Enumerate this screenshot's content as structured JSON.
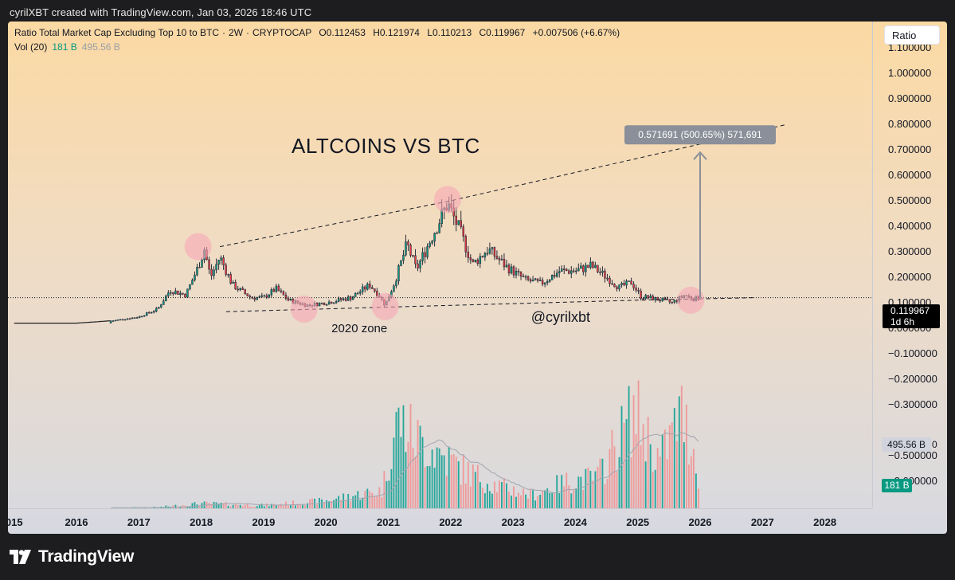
{
  "header": {
    "created_by": "cyrilXBT created with TradingView.com, Jan 03, 2026 18:46 UTC"
  },
  "legend": {
    "title": "Ratio Total Market Cap Excluding Top 10 to BTC",
    "interval": "2W",
    "exchange": "CRYPTOCAP",
    "open": "O0.112453",
    "high": "H0.121974",
    "low": "L0.110213",
    "close": "C0.119967",
    "change": "+0.007506 (+6.67%)",
    "vol_label": "Vol (20)",
    "vol_value": "181 B",
    "vol_ma_value": "495.56 B"
  },
  "toolbar": {
    "scale_button": "Ratio"
  },
  "price_tag": {
    "price": "0.119967",
    "countdown": "1d 6h"
  },
  "volume_tags": {
    "vol_ma": "495.56 B",
    "vol_ma_suffix": "0",
    "vol": "181 B"
  },
  "brand": {
    "name": "TradingView"
  },
  "colors": {
    "bg_top": "#fbd9a3",
    "bg_bottom": "#d7d9e1",
    "up": "#089981",
    "down": "#f23645",
    "vol_up": "#26a69a",
    "vol_down": "#ef9a9a",
    "highlight_circle": "#f7a6b5",
    "measure": "#8a8f99"
  },
  "chart_data": {
    "type": "candlestick",
    "title": "ALTCOINS VS BTC",
    "y_range": [
      -0.65,
      1.15
    ],
    "y_ticks": [
      "1.100000",
      "1.000000",
      "0.900000",
      "0.800000",
      "0.700000",
      "0.600000",
      "0.500000",
      "0.400000",
      "0.300000",
      "0.200000",
      "0.100000",
      "0.000000",
      "−0.100000",
      "−0.200000",
      "−0.300000",
      "−0.500000",
      "−0.600000"
    ],
    "x_range": [
      2015.0,
      2029.0
    ],
    "x_ticks": [
      "015",
      "2016",
      "2017",
      "2018",
      "2019",
      "2020",
      "2021",
      "2022",
      "2023",
      "2024",
      "2025",
      "2026",
      "2027",
      "2028"
    ],
    "price_path": [
      [
        2015.0,
        0.02
      ],
      [
        2016.0,
        0.02
      ],
      [
        2016.6,
        0.03
      ],
      [
        2017.0,
        0.045
      ],
      [
        2017.3,
        0.075
      ],
      [
        2017.5,
        0.15
      ],
      [
        2017.75,
        0.13
      ],
      [
        2017.95,
        0.24
      ],
      [
        2018.05,
        0.31
      ],
      [
        2018.15,
        0.2
      ],
      [
        2018.3,
        0.28
      ],
      [
        2018.5,
        0.17
      ],
      [
        2018.8,
        0.12
      ],
      [
        2019.0,
        0.12
      ],
      [
        2019.2,
        0.155
      ],
      [
        2019.4,
        0.11
      ],
      [
        2019.7,
        0.09
      ],
      [
        2020.0,
        0.1
      ],
      [
        2020.4,
        0.12
      ],
      [
        2020.7,
        0.17
      ],
      [
        2020.85,
        0.13
      ],
      [
        2020.95,
        0.09
      ],
      [
        2021.1,
        0.18
      ],
      [
        2021.3,
        0.33
      ],
      [
        2021.45,
        0.23
      ],
      [
        2021.7,
        0.36
      ],
      [
        2021.95,
        0.49
      ],
      [
        2022.15,
        0.38
      ],
      [
        2022.35,
        0.25
      ],
      [
        2022.6,
        0.31
      ],
      [
        2022.9,
        0.24
      ],
      [
        2023.2,
        0.19
      ],
      [
        2023.45,
        0.175
      ],
      [
        2023.75,
        0.225
      ],
      [
        2024.0,
        0.225
      ],
      [
        2024.25,
        0.245
      ],
      [
        2024.45,
        0.21
      ],
      [
        2024.7,
        0.16
      ],
      [
        2024.9,
        0.18
      ],
      [
        2025.05,
        0.125
      ],
      [
        2025.4,
        0.11
      ],
      [
        2025.55,
        0.1
      ],
      [
        2025.75,
        0.13
      ],
      [
        2025.9,
        0.115
      ],
      [
        2026.0,
        0.12
      ]
    ],
    "volume_peaks_billion": [
      [
        2015.0,
        1
      ],
      [
        2017.3,
        18
      ],
      [
        2018.0,
        60
      ],
      [
        2019.0,
        40
      ],
      [
        2020.0,
        90
      ],
      [
        2020.9,
        200
      ],
      [
        2021.15,
        950
      ],
      [
        2021.45,
        750
      ],
      [
        2021.8,
        600
      ],
      [
        2022.2,
        420
      ],
      [
        2022.7,
        260
      ],
      [
        2023.3,
        150
      ],
      [
        2023.9,
        300
      ],
      [
        2024.35,
        330
      ],
      [
        2024.95,
        1050
      ],
      [
        2025.35,
        520
      ],
      [
        2025.7,
        1020
      ],
      [
        2025.95,
        520
      ],
      [
        2026.0,
        181
      ]
    ],
    "volume_range_billion": [
      0,
      1100
    ],
    "volume_ma_billion": "495.56",
    "last_close": 0.119967,
    "upper_trendline": [
      [
        2018.3,
        0.32
      ],
      [
        2022.0,
        0.5
      ],
      [
        2027.4,
        0.8
      ]
    ],
    "lower_trendline": [
      [
        2018.4,
        0.065
      ],
      [
        2025.0,
        0.11
      ],
      [
        2026.9,
        0.12
      ]
    ],
    "highlight_points": [
      [
        2017.95,
        0.32
      ],
      [
        2019.65,
        0.075
      ],
      [
        2020.95,
        0.085
      ],
      [
        2021.95,
        0.505
      ],
      [
        2025.85,
        0.11
      ]
    ],
    "measure": {
      "from": [
        2026.0,
        0.12
      ],
      "to": [
        2026.0,
        0.69
      ],
      "label": "0.571691 (500.65%) 571,691"
    },
    "annotations": [
      {
        "text": "2020 zone",
        "at": [
          2020.6,
          0.0
        ]
      },
      {
        "text": "@cyrilxbt",
        "at": [
          2023.8,
          0.04
        ]
      }
    ]
  }
}
